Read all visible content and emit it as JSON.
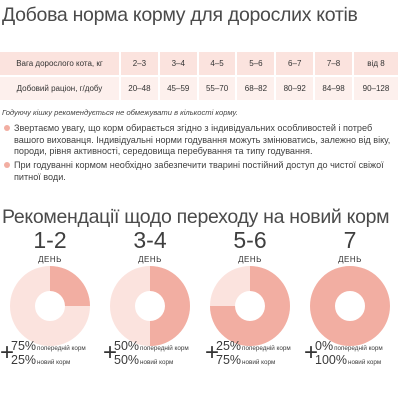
{
  "title": "Добова норма корму для дорослих котів",
  "table": {
    "row_weight": {
      "label": "Вага дорослого кота, кг",
      "values": [
        "2–3",
        "3–4",
        "4–5",
        "5–6",
        "6–7",
        "7–8",
        "від 8"
      ]
    },
    "row_ration": {
      "label": "Добовий раціон, г/добу",
      "values": [
        "20–48",
        "45–59",
        "55–70",
        "68–82",
        "80–92",
        "84–98",
        "90–128"
      ]
    }
  },
  "note": "Годуючу кішку рекомендується не обмежувати в кількості корму.",
  "bullets": [
    "Звертаємо увагу, що корм обирається згідно з індивідуальних особливостей і потреб вашого вихованця. Індивідуальні норми годування можуть змінюватись, залежно від віку, породи, рівня активності, середовища перебування та типу годування.",
    "При годуванні кормом необхідно забезпечити тварині постійний доступ до чистої свіжої питної води."
  ],
  "transition": {
    "title": "Рекомендації щодо переходу на новий корм",
    "day_label": "ДЕНЬ",
    "plus": "+",
    "prev_label": "попередній корм",
    "new_label": "новий корм",
    "colors": {
      "prev": "#fbe3de",
      "new": "#f2aea2"
    },
    "steps": [
      {
        "days": "1-2",
        "prev_pct": "75%",
        "new_pct": "25%",
        "new_share": 0.25
      },
      {
        "days": "3-4",
        "prev_pct": "50%",
        "new_pct": "50%",
        "new_share": 0.5
      },
      {
        "days": "5-6",
        "prev_pct": "25%",
        "new_pct": "75%",
        "new_share": 0.75
      },
      {
        "days": "7",
        "prev_pct": "0%",
        "new_pct": "100%",
        "new_share": 1.0
      }
    ]
  }
}
